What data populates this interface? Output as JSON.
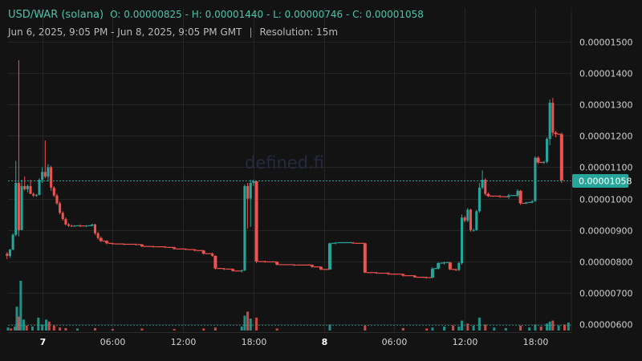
{
  "header": {
    "pair": "USD/WAR (solana)",
    "ohlc": "O: 0.00000825 - H: 0.00001440 - L: 0.00000746 - C: 0.00001058",
    "range": "Jun 6, 2025, 9:05 PM - Jun 8, 2025, 9:05 PM GMT",
    "separator": "|",
    "resolution": "Resolution: 15m"
  },
  "watermark": "defined.fi",
  "colors": {
    "background": "#131313",
    "up": "#26a69a",
    "down": "#ef5350",
    "grid": "#262626",
    "price_line": "#26a69a",
    "price_badge": "#26a69a"
  },
  "chart_data": {
    "type": "candlestick",
    "y_ticks": [
      "0.00001500",
      "0.00001400",
      "0.00001300",
      "0.00001200",
      "0.00001100",
      "0.00001000",
      "0.00000900",
      "0.00000800",
      "0.00000700",
      "0.00000600"
    ],
    "ylim": [
      5.4e-06,
      1.56e-05
    ],
    "x_ticks": [
      "7",
      "06:00",
      "12:00",
      "18:00",
      "8",
      "06:00",
      "12:00",
      "18:00"
    ],
    "x_ticks_bold": [
      "7",
      "8"
    ],
    "x_start": "2025-06-06T21:05:00Z",
    "x_end": "2025-06-08T21:05:00Z",
    "last_price": "0.00001058",
    "last_price_value": 1.058e-05,
    "grid": true,
    "candles": [
      {
        "t": "2025-06-06T21:00:00Z",
        "o": 8.25e-06,
        "h": 8.3e-06,
        "l": 8.08e-06,
        "c": 8.18e-06
      },
      {
        "t": "2025-06-06T21:15:00Z",
        "o": 8.18e-06,
        "h": 8.4e-06,
        "l": 8.12e-06,
        "c": 8.38e-06
      },
      {
        "t": "2025-06-06T21:30:00Z",
        "o": 8.38e-06,
        "h": 8.9e-06,
        "l": 8.35e-06,
        "c": 8.85e-06
      },
      {
        "t": "2025-06-06T21:45:00Z",
        "o": 8.85e-06,
        "h": 1.12e-05,
        "l": 8.8e-06,
        "c": 1.05e-05
      },
      {
        "t": "2025-06-06T22:00:00Z",
        "o": 1.05e-05,
        "h": 1.44e-05,
        "l": 8.8e-06,
        "c": 9e-06
      },
      {
        "t": "2025-06-06T22:15:00Z",
        "o": 9e-06,
        "h": 1.06e-05,
        "l": 9e-06,
        "c": 1.04e-05
      },
      {
        "t": "2025-06-06T22:30:00Z",
        "o": 1.04e-05,
        "h": 1.07e-05,
        "l": 1.025e-05,
        "c": 1.03e-05
      },
      {
        "t": "2025-06-06T22:45:00Z",
        "o": 1.03e-05,
        "h": 1.045e-05,
        "l": 1.02e-05,
        "c": 1.04e-05
      },
      {
        "t": "2025-06-06T23:00:00Z",
        "o": 1.04e-05,
        "h": 1.06e-05,
        "l": 1.015e-05,
        "c": 1.015e-05
      },
      {
        "t": "2025-06-06T23:15:00Z",
        "o": 1.015e-05,
        "h": 1.02e-05,
        "l": 1.005e-05,
        "c": 1.01e-05
      },
      {
        "t": "2025-06-06T23:30:00Z",
        "o": 1.01e-05,
        "h": 1.015e-05,
        "l": 1.005e-05,
        "c": 1.012e-05
      },
      {
        "t": "2025-06-06T23:45:00Z",
        "o": 1.012e-05,
        "h": 1.065e-05,
        "l": 1.01e-05,
        "c": 1.06e-05
      },
      {
        "t": "2025-06-07T00:00:00Z",
        "o": 1.06e-05,
        "h": 1.1e-05,
        "l": 1.05e-05,
        "c": 1.085e-05
      },
      {
        "t": "2025-06-07T00:15:00Z",
        "o": 1.085e-05,
        "h": 1.185e-05,
        "l": 1.065e-05,
        "c": 1.07e-05
      },
      {
        "t": "2025-06-07T00:30:00Z",
        "o": 1.07e-05,
        "h": 1.11e-05,
        "l": 1.055e-05,
        "c": 1.1e-05
      },
      {
        "t": "2025-06-07T00:45:00Z",
        "o": 1.1e-05,
        "h": 1.105e-05,
        "l": 1.025e-05,
        "c": 1.035e-05
      },
      {
        "t": "2025-06-07T01:00:00Z",
        "o": 1.035e-05,
        "h": 1.04e-05,
        "l": 1.005e-05,
        "c": 1.01e-05
      },
      {
        "t": "2025-06-07T01:15:00Z",
        "o": 1.01e-05,
        "h": 1.015e-05,
        "l": 9.8e-06,
        "c": 9.85e-06
      },
      {
        "t": "2025-06-07T01:30:00Z",
        "o": 9.85e-06,
        "h": 9.9e-06,
        "l": 9.5e-06,
        "c": 9.55e-06
      },
      {
        "t": "2025-06-07T01:45:00Z",
        "o": 9.55e-06,
        "h": 9.6e-06,
        "l": 9.3e-06,
        "c": 9.35e-06
      },
      {
        "t": "2025-06-07T02:00:00Z",
        "o": 9.35e-06,
        "h": 9.4e-06,
        "l": 9.15e-06,
        "c": 9.18e-06
      },
      {
        "t": "2025-06-07T02:15:00Z",
        "o": 9.18e-06,
        "h": 9.22e-06,
        "l": 9.1e-06,
        "c": 9.14e-06
      },
      {
        "t": "2025-06-07T02:30:00Z",
        "o": 9.14e-06,
        "h": 9.18e-06,
        "l": 9.1e-06,
        "c": 9.13e-06
      },
      {
        "t": "2025-06-07T02:45:00Z",
        "o": 9.13e-06,
        "h": 9.16e-06,
        "l": 9.1e-06,
        "c": 9.14e-06
      },
      {
        "t": "2025-06-07T03:15:00Z",
        "o": 9.14e-06,
        "h": 9.18e-06,
        "l": 9.1e-06,
        "c": 9.13e-06
      },
      {
        "t": "2025-06-07T03:45:00Z",
        "o": 9.13e-06,
        "h": 9.16e-06,
        "l": 9.1e-06,
        "c": 9.14e-06
      },
      {
        "t": "2025-06-07T04:15:00Z",
        "o": 9.14e-06,
        "h": 9.2e-06,
        "l": 9.12e-06,
        "c": 9.18e-06
      },
      {
        "t": "2025-06-07T04:30:00Z",
        "o": 9.18e-06,
        "h": 9.2e-06,
        "l": 8.85e-06,
        "c": 8.9e-06
      },
      {
        "t": "2025-06-07T04:45:00Z",
        "o": 8.9e-06,
        "h": 8.95e-06,
        "l": 8.7e-06,
        "c": 8.75e-06
      },
      {
        "t": "2025-06-07T05:00:00Z",
        "o": 8.75e-06,
        "h": 8.8e-06,
        "l": 8.62e-06,
        "c": 8.65e-06
      },
      {
        "t": "2025-06-07T05:30:00Z",
        "o": 8.65e-06,
        "h": 8.68e-06,
        "l": 8.55e-06,
        "c": 8.58e-06
      },
      {
        "t": "2025-06-07T06:00:00Z",
        "o": 8.58e-06,
        "h": 8.6e-06,
        "l": 8.54e-06,
        "c": 8.56e-06
      },
      {
        "t": "2025-06-07T07:00:00Z",
        "o": 8.56e-06,
        "h": 8.58e-06,
        "l": 8.52e-06,
        "c": 8.55e-06
      },
      {
        "t": "2025-06-07T08:00:00Z",
        "o": 8.55e-06,
        "h": 8.57e-06,
        "l": 8.51e-06,
        "c": 8.54e-06
      },
      {
        "t": "2025-06-07T08:30:00Z",
        "o": 8.54e-06,
        "h": 8.56e-06,
        "l": 8.46e-06,
        "c": 8.48e-06
      },
      {
        "t": "2025-06-07T09:30:00Z",
        "o": 8.48e-06,
        "h": 8.5e-06,
        "l": 8.45e-06,
        "c": 8.47e-06
      },
      {
        "t": "2025-06-07T10:30:00Z",
        "o": 8.47e-06,
        "h": 8.49e-06,
        "l": 8.43e-06,
        "c": 8.45e-06
      },
      {
        "t": "2025-06-07T11:15:00Z",
        "o": 8.45e-06,
        "h": 8.47e-06,
        "l": 8.38e-06,
        "c": 8.4e-06
      },
      {
        "t": "2025-06-07T12:15:00Z",
        "o": 8.4e-06,
        "h": 8.42e-06,
        "l": 8.36e-06,
        "c": 8.38e-06
      },
      {
        "t": "2025-06-07T13:00:00Z",
        "o": 8.38e-06,
        "h": 8.4e-06,
        "l": 8.32e-06,
        "c": 8.35e-06
      },
      {
        "t": "2025-06-07T13:45:00Z",
        "o": 8.35e-06,
        "h": 8.37e-06,
        "l": 8.22e-06,
        "c": 8.25e-06
      },
      {
        "t": "2025-06-07T14:30:00Z",
        "o": 8.25e-06,
        "h": 8.28e-06,
        "l": 8.15e-06,
        "c": 8.18e-06
      },
      {
        "t": "2025-06-07T14:45:00Z",
        "o": 8.18e-06,
        "h": 8.2e-06,
        "l": 7.75e-06,
        "c": 7.78e-06
      },
      {
        "t": "2025-06-07T15:30:00Z",
        "o": 7.78e-06,
        "h": 7.8e-06,
        "l": 7.73e-06,
        "c": 7.76e-06
      },
      {
        "t": "2025-06-07T16:15:00Z",
        "o": 7.76e-06,
        "h": 7.78e-06,
        "l": 7.68e-06,
        "c": 7.7e-06
      },
      {
        "t": "2025-06-07T17:00:00Z",
        "o": 7.7e-06,
        "h": 7.75e-06,
        "l": 7.65e-06,
        "c": 7.72e-06
      },
      {
        "t": "2025-06-07T17:15:00Z",
        "o": 7.72e-06,
        "h": 1.045e-05,
        "l": 7.7e-06,
        "c": 1.04e-05
      },
      {
        "t": "2025-06-07T17:30:00Z",
        "o": 1.04e-05,
        "h": 1.05e-05,
        "l": 9.05e-06,
        "c": 1e-05
      },
      {
        "t": "2025-06-07T17:45:00Z",
        "o": 1e-05,
        "h": 1.06e-05,
        "l": 9.1e-06,
        "c": 1.05e-05
      },
      {
        "t": "2025-06-07T18:00:00Z",
        "o": 1.05e-05,
        "h": 1.06e-05,
        "l": 1.04e-05,
        "c": 1.055e-05
      },
      {
        "t": "2025-06-07T18:15:00Z",
        "o": 1.055e-05,
        "h": 1.058e-05,
        "l": 7.95e-06,
        "c": 8e-06
      },
      {
        "t": "2025-06-07T19:00:00Z",
        "o": 8e-06,
        "h": 8.03e-06,
        "l": 7.97e-06,
        "c": 7.99e-06
      },
      {
        "t": "2025-06-07T20:00:00Z",
        "o": 7.99e-06,
        "h": 8.01e-06,
        "l": 7.87e-06,
        "c": 7.9e-06
      },
      {
        "t": "2025-06-07T21:30:00Z",
        "o": 7.9e-06,
        "h": 7.92e-06,
        "l": 7.86e-06,
        "c": 7.89e-06
      },
      {
        "t": "2025-06-07T23:00:00Z",
        "o": 7.89e-06,
        "h": 7.91e-06,
        "l": 7.8e-06,
        "c": 7.83e-06
      },
      {
        "t": "2025-06-07T23:45:00Z",
        "o": 7.83e-06,
        "h": 7.85e-06,
        "l": 7.72e-06,
        "c": 7.75e-06
      },
      {
        "t": "2025-06-08T00:30:00Z",
        "o": 7.75e-06,
        "h": 8.6e-06,
        "l": 7.73e-06,
        "c": 8.58e-06
      },
      {
        "t": "2025-06-08T01:00:00Z",
        "o": 8.58e-06,
        "h": 8.62e-06,
        "l": 8.55e-06,
        "c": 8.6e-06
      },
      {
        "t": "2025-06-08T02:30:00Z",
        "o": 8.6e-06,
        "h": 8.62e-06,
        "l": 8.56e-06,
        "c": 8.58e-06
      },
      {
        "t": "2025-06-08T03:30:00Z",
        "o": 8.58e-06,
        "h": 8.6e-06,
        "l": 7.63e-06,
        "c": 7.65e-06
      },
      {
        "t": "2025-06-08T04:30:00Z",
        "o": 7.65e-06,
        "h": 7.67e-06,
        "l": 7.61e-06,
        "c": 7.63e-06
      },
      {
        "t": "2025-06-08T05:30:00Z",
        "o": 7.63e-06,
        "h": 7.66e-06,
        "l": 7.57e-06,
        "c": 7.6e-06
      },
      {
        "t": "2025-06-08T06:45:00Z",
        "o": 7.6e-06,
        "h": 7.62e-06,
        "l": 7.52e-06,
        "c": 7.55e-06
      },
      {
        "t": "2025-06-08T07:45:00Z",
        "o": 7.55e-06,
        "h": 7.57e-06,
        "l": 7.48e-06,
        "c": 7.5e-06
      },
      {
        "t": "2025-06-08T08:45:00Z",
        "o": 7.5e-06,
        "h": 7.52e-06,
        "l": 7.46e-06,
        "c": 7.49e-06
      },
      {
        "t": "2025-06-08T09:15:00Z",
        "o": 7.49e-06,
        "h": 7.82e-06,
        "l": 7.46e-06,
        "c": 7.78e-06
      },
      {
        "t": "2025-06-08T09:45:00Z",
        "o": 7.78e-06,
        "h": 7.98e-06,
        "l": 7.75e-06,
        "c": 7.95e-06
      },
      {
        "t": "2025-06-08T10:15:00Z",
        "o": 7.95e-06,
        "h": 8e-06,
        "l": 7.9e-06,
        "c": 7.97e-06
      },
      {
        "t": "2025-06-08T10:45:00Z",
        "o": 7.97e-06,
        "h": 7.99e-06,
        "l": 7.72e-06,
        "c": 7.75e-06
      },
      {
        "t": "2025-06-08T11:15:00Z",
        "o": 7.75e-06,
        "h": 7.78e-06,
        "l": 7.7e-06,
        "c": 7.73e-06
      },
      {
        "t": "2025-06-08T11:30:00Z",
        "o": 7.73e-06,
        "h": 8e-06,
        "l": 7.7e-06,
        "c": 7.95e-06
      },
      {
        "t": "2025-06-08T11:45:00Z",
        "o": 7.95e-06,
        "h": 9.5e-06,
        "l": 7.9e-06,
        "c": 9.4e-06
      },
      {
        "t": "2025-06-08T12:00:00Z",
        "o": 9.4e-06,
        "h": 9.45e-06,
        "l": 9.25e-06,
        "c": 9.3e-06
      },
      {
        "t": "2025-06-08T12:15:00Z",
        "o": 9.3e-06,
        "h": 9.7e-06,
        "l": 9.25e-06,
        "c": 9.65e-06
      },
      {
        "t": "2025-06-08T12:30:00Z",
        "o": 9.65e-06,
        "h": 9.68e-06,
        "l": 8.95e-06,
        "c": 9e-06
      },
      {
        "t": "2025-06-08T12:45:00Z",
        "o": 9e-06,
        "h": 9.05e-06,
        "l": 8.95e-06,
        "c": 9e-06
      },
      {
        "t": "2025-06-08T13:00:00Z",
        "o": 9e-06,
        "h": 9.65e-06,
        "l": 8.98e-06,
        "c": 9.6e-06
      },
      {
        "t": "2025-06-08T13:15:00Z",
        "o": 9.6e-06,
        "h": 1.05e-05,
        "l": 9.55e-06,
        "c": 1.035e-05
      },
      {
        "t": "2025-06-08T13:30:00Z",
        "o": 1.035e-05,
        "h": 1.09e-05,
        "l": 1.03e-05,
        "c": 1.06e-05
      },
      {
        "t": "2025-06-08T13:45:00Z",
        "o": 1.06e-05,
        "h": 1.065e-05,
        "l": 1.01e-05,
        "c": 1.015e-05
      },
      {
        "t": "2025-06-08T14:00:00Z",
        "o": 1.015e-05,
        "h": 1.02e-05,
        "l": 1.005e-05,
        "c": 1.008e-05
      },
      {
        "t": "2025-06-08T15:00:00Z",
        "o": 1.008e-05,
        "h": 1.012e-05,
        "l": 1.003e-05,
        "c": 1.006e-05
      },
      {
        "t": "2025-06-08T15:45:00Z",
        "o": 1.006e-05,
        "h": 1.015e-05,
        "l": 1e-05,
        "c": 1.01e-05
      },
      {
        "t": "2025-06-08T16:30:00Z",
        "o": 1.01e-05,
        "h": 1.03e-05,
        "l": 1.005e-05,
        "c": 1.025e-05
      },
      {
        "t": "2025-06-08T16:45:00Z",
        "o": 1.025e-05,
        "h": 1.028e-05,
        "l": 9.8e-06,
        "c": 9.85e-06
      },
      {
        "t": "2025-06-08T17:15:00Z",
        "o": 9.85e-06,
        "h": 9.9e-06,
        "l": 9.82e-06,
        "c": 9.88e-06
      },
      {
        "t": "2025-06-08T17:45:00Z",
        "o": 9.88e-06,
        "h": 9.95e-06,
        "l": 9.85e-06,
        "c": 9.92e-06
      },
      {
        "t": "2025-06-08T18:00:00Z",
        "o": 9.92e-06,
        "h": 1.135e-05,
        "l": 9.9e-06,
        "c": 1.13e-05
      },
      {
        "t": "2025-06-08T18:15:00Z",
        "o": 1.13e-05,
        "h": 1.135e-05,
        "l": 1.11e-05,
        "c": 1.115e-05
      },
      {
        "t": "2025-06-08T18:45:00Z",
        "o": 1.115e-05,
        "h": 1.12e-05,
        "l": 1.11e-05,
        "c": 1.117e-05
      },
      {
        "t": "2025-06-08T19:00:00Z",
        "o": 1.117e-05,
        "h": 1.195e-05,
        "l": 1.112e-05,
        "c": 1.19e-05
      },
      {
        "t": "2025-06-08T19:15:00Z",
        "o": 1.19e-05,
        "h": 1.315e-05,
        "l": 1.17e-05,
        "c": 1.305e-05
      },
      {
        "t": "2025-06-08T19:30:00Z",
        "o": 1.305e-05,
        "h": 1.32e-05,
        "l": 1.2e-05,
        "c": 1.21e-05
      },
      {
        "t": "2025-06-08T19:45:00Z",
        "o": 1.21e-05,
        "h": 1.215e-05,
        "l": 1.195e-05,
        "c": 1.205e-05
      },
      {
        "t": "2025-06-08T20:15:00Z",
        "o": 1.205e-05,
        "h": 1.21e-05,
        "l": 1.05e-05,
        "c": 1.058e-05
      }
    ],
    "volume_max_relative": 1.0,
    "volume": [
      {
        "t": "2025-06-06T21:05:00Z",
        "v": 0.06,
        "up": true
      },
      {
        "t": "2025-06-06T21:20:00Z",
        "v": 0.04,
        "up": false
      },
      {
        "t": "2025-06-06T21:40:00Z",
        "v": 0.08,
        "up": true
      },
      {
        "t": "2025-06-06T21:50:00Z",
        "v": 0.48,
        "up": true
      },
      {
        "t": "2025-06-06T22:00:00Z",
        "v": 0.28,
        "up": false
      },
      {
        "t": "2025-06-06T22:10:00Z",
        "v": 1.0,
        "up": true
      },
      {
        "t": "2025-06-06T22:25:00Z",
        "v": 0.22,
        "up": true
      },
      {
        "t": "2025-06-06T22:40:00Z",
        "v": 0.1,
        "up": false
      },
      {
        "t": "2025-06-06T23:10:00Z",
        "v": 0.08,
        "up": true
      },
      {
        "t": "2025-06-06T23:40:00Z",
        "v": 0.26,
        "up": true
      },
      {
        "t": "2025-06-07T00:00:00Z",
        "v": 0.12,
        "up": true
      },
      {
        "t": "2025-06-07T00:20:00Z",
        "v": 0.22,
        "up": true
      },
      {
        "t": "2025-06-07T00:35:00Z",
        "v": 0.18,
        "up": false
      },
      {
        "t": "2025-06-07T01:00:00Z",
        "v": 0.1,
        "up": false
      },
      {
        "t": "2025-06-07T01:30:00Z",
        "v": 0.06,
        "up": false
      },
      {
        "t": "2025-06-07T02:00:00Z",
        "v": 0.05,
        "up": false
      },
      {
        "t": "2025-06-07T03:00:00Z",
        "v": 0.04,
        "up": true
      },
      {
        "t": "2025-06-07T04:30:00Z",
        "v": 0.05,
        "up": false
      },
      {
        "t": "2025-06-07T06:00:00Z",
        "v": 0.03,
        "up": false
      },
      {
        "t": "2025-06-07T08:30:00Z",
        "v": 0.04,
        "up": false
      },
      {
        "t": "2025-06-07T11:15:00Z",
        "v": 0.03,
        "up": false
      },
      {
        "t": "2025-06-07T13:45:00Z",
        "v": 0.04,
        "up": false
      },
      {
        "t": "2025-06-07T14:45:00Z",
        "v": 0.06,
        "up": false
      },
      {
        "t": "2025-06-07T17:00:00Z",
        "v": 0.08,
        "up": true
      },
      {
        "t": "2025-06-07T17:15:00Z",
        "v": 0.3,
        "up": true
      },
      {
        "t": "2025-06-07T17:30:00Z",
        "v": 0.38,
        "up": false
      },
      {
        "t": "2025-06-07T17:45:00Z",
        "v": 0.24,
        "up": true
      },
      {
        "t": "2025-06-07T18:15:00Z",
        "v": 0.26,
        "up": false
      },
      {
        "t": "2025-06-07T20:00:00Z",
        "v": 0.04,
        "up": false
      },
      {
        "t": "2025-06-08T00:30:00Z",
        "v": 0.12,
        "up": true
      },
      {
        "t": "2025-06-08T03:30:00Z",
        "v": 0.1,
        "up": false
      },
      {
        "t": "2025-06-08T06:45:00Z",
        "v": 0.05,
        "up": false
      },
      {
        "t": "2025-06-08T08:45:00Z",
        "v": 0.04,
        "up": false
      },
      {
        "t": "2025-06-08T09:15:00Z",
        "v": 0.06,
        "up": true
      },
      {
        "t": "2025-06-08T10:15:00Z",
        "v": 0.08,
        "up": true
      },
      {
        "t": "2025-06-08T11:00:00Z",
        "v": 0.1,
        "up": false
      },
      {
        "t": "2025-06-08T11:30:00Z",
        "v": 0.08,
        "up": true
      },
      {
        "t": "2025-06-08T11:45:00Z",
        "v": 0.2,
        "up": true
      },
      {
        "t": "2025-06-08T12:15:00Z",
        "v": 0.14,
        "up": false
      },
      {
        "t": "2025-06-08T12:45:00Z",
        "v": 0.1,
        "up": true
      },
      {
        "t": "2025-06-08T13:15:00Z",
        "v": 0.26,
        "up": true
      },
      {
        "t": "2025-06-08T13:45:00Z",
        "v": 0.12,
        "up": false
      },
      {
        "t": "2025-06-08T14:30:00Z",
        "v": 0.06,
        "up": true
      },
      {
        "t": "2025-06-08T15:30:00Z",
        "v": 0.05,
        "up": true
      },
      {
        "t": "2025-06-08T16:45:00Z",
        "v": 0.1,
        "up": false
      },
      {
        "t": "2025-06-08T17:30:00Z",
        "v": 0.06,
        "up": true
      },
      {
        "t": "2025-06-08T18:00:00Z",
        "v": 0.12,
        "up": true
      },
      {
        "t": "2025-06-08T18:30:00Z",
        "v": 0.08,
        "up": false
      },
      {
        "t": "2025-06-08T19:00:00Z",
        "v": 0.14,
        "up": true
      },
      {
        "t": "2025-06-08T19:15:00Z",
        "v": 0.18,
        "up": true
      },
      {
        "t": "2025-06-08T19:30:00Z",
        "v": 0.2,
        "up": false
      },
      {
        "t": "2025-06-08T20:00:00Z",
        "v": 0.1,
        "up": true
      },
      {
        "t": "2025-06-08T20:30:00Z",
        "v": 0.12,
        "up": false
      },
      {
        "t": "2025-06-08T20:50:00Z",
        "v": 0.16,
        "up": true
      }
    ]
  }
}
